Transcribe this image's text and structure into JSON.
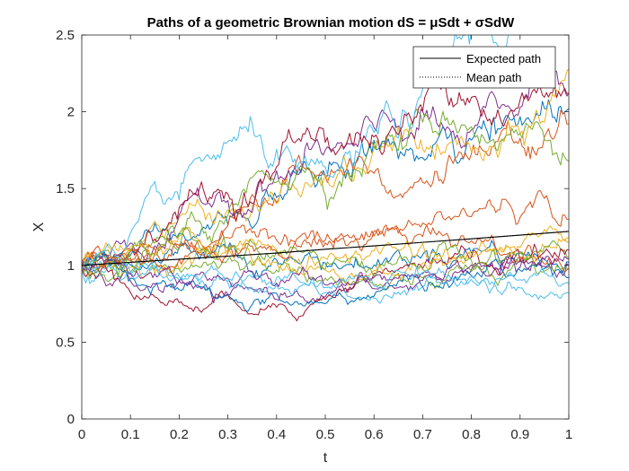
{
  "chart_data": {
    "type": "line",
    "title": "Paths of a geometric Brownian motion dS = μSdt + σSdW",
    "xlabel": "t",
    "ylabel": "X",
    "xlim": [
      0,
      1
    ],
    "ylim": [
      0,
      2.5
    ],
    "x_ticks": [
      "0",
      "0.1",
      "0.2",
      "0.3",
      "0.4",
      "0.5",
      "0.6",
      "0.7",
      "0.8",
      "0.9",
      "1"
    ],
    "y_ticks": [
      "0",
      "0.5",
      "1",
      "1.5",
      "2",
      "2.5"
    ],
    "grid": false,
    "legend": {
      "placement": "top-right",
      "entries": [
        {
          "label": "Expected path",
          "style": "solid",
          "color": "#000000"
        },
        {
          "label": "Mean path",
          "style": "dotted",
          "color": "#000000"
        }
      ]
    },
    "x": [
      0,
      0.1,
      0.2,
      0.3,
      0.4,
      0.5,
      0.6,
      0.7,
      0.8,
      0.9,
      1
    ],
    "series": [
      {
        "color": "#0072BD",
        "values": [
          1.0,
          1.06,
          1.18,
          1.32,
          1.48,
          1.62,
          1.74,
          1.7,
          1.82,
          1.92,
          2.02
        ]
      },
      {
        "color": "#D95319",
        "values": [
          1.0,
          1.04,
          1.15,
          1.25,
          1.45,
          1.6,
          1.62,
          1.58,
          1.7,
          1.78,
          1.92
        ]
      },
      {
        "color": "#EDB120",
        "values": [
          1.0,
          1.1,
          1.28,
          1.35,
          1.42,
          1.55,
          1.72,
          1.82,
          1.78,
          1.9,
          2.28
        ]
      },
      {
        "color": "#7E2F8E",
        "values": [
          1.0,
          1.14,
          1.28,
          1.42,
          1.58,
          1.72,
          1.92,
          2.02,
          1.85,
          1.98,
          2.12
        ]
      },
      {
        "color": "#77AC30",
        "values": [
          1.0,
          1.08,
          1.18,
          1.3,
          1.55,
          1.5,
          1.82,
          1.98,
          1.9,
          1.85,
          1.68
        ]
      },
      {
        "color": "#4DBEEE",
        "values": [
          1.0,
          1.18,
          1.48,
          1.8,
          1.68,
          1.62,
          1.9,
          2.1,
          2.45,
          2.55,
          2.6
        ]
      },
      {
        "color": "#A2142F",
        "values": [
          1.0,
          1.12,
          1.32,
          1.48,
          1.62,
          1.9,
          1.85,
          2.05,
          2.08,
          2.02,
          2.12
        ]
      },
      {
        "color": "#0072BD",
        "values": [
          1.0,
          1.02,
          1.08,
          1.12,
          1.05,
          1.02,
          0.98,
          1.05,
          1.12,
          1.08,
          1.02
        ]
      },
      {
        "color": "#D95319",
        "values": [
          1.0,
          1.05,
          1.12,
          1.18,
          1.2,
          1.15,
          1.22,
          1.25,
          1.32,
          1.28,
          1.3
        ]
      },
      {
        "color": "#EDB120",
        "values": [
          1.0,
          0.98,
          1.02,
          1.08,
          1.12,
          1.05,
          1.1,
          1.12,
          1.08,
          1.1,
          1.15
        ]
      },
      {
        "color": "#7E2F8E",
        "values": [
          1.0,
          0.92,
          0.88,
          0.82,
          0.78,
          0.8,
          0.85,
          0.9,
          0.95,
          0.98,
          1.0
        ]
      },
      {
        "color": "#77AC30",
        "values": [
          1.0,
          0.95,
          0.98,
          1.02,
          0.95,
          0.9,
          0.88,
          0.92,
          0.98,
          1.02,
          1.05
        ]
      },
      {
        "color": "#4DBEEE",
        "values": [
          1.0,
          0.96,
          0.92,
          0.9,
          0.85,
          0.82,
          0.8,
          0.85,
          0.9,
          0.86,
          0.82
        ]
      },
      {
        "color": "#A2142F",
        "values": [
          1.0,
          0.85,
          0.78,
          0.8,
          0.75,
          0.8,
          0.92,
          1.0,
          1.05,
          1.1,
          1.1
        ]
      },
      {
        "color": "#0072BD",
        "values": [
          1.0,
          0.9,
          0.85,
          0.8,
          0.82,
          0.75,
          0.8,
          0.88,
          0.95,
          0.98,
          0.92
        ]
      },
      {
        "color": "#D95319",
        "values": [
          1.0,
          1.08,
          1.0,
          1.05,
          1.1,
          1.12,
          1.18,
          1.2,
          1.15,
          1.05,
          0.98
        ]
      },
      {
        "color": "#EDB120",
        "values": [
          1.0,
          1.1,
          1.15,
          1.08,
          1.02,
          0.98,
          0.95,
          1.0,
          1.08,
          1.12,
          1.18
        ]
      },
      {
        "color": "#7E2F8E",
        "values": [
          1.0,
          0.94,
          0.88,
          0.92,
          0.86,
          0.88,
          0.92,
          0.95,
          1.0,
          1.02,
          1.04
        ]
      },
      {
        "color": "#77AC30",
        "values": [
          1.0,
          1.06,
          1.1,
          1.12,
          1.05,
          0.98,
          0.95,
          1.0,
          1.05,
          1.08,
          0.98
        ]
      },
      {
        "color": "#4DBEEE",
        "values": [
          1.0,
          0.98,
          0.95,
          0.9,
          0.88,
          0.85,
          0.9,
          0.95,
          0.92,
          0.9,
          0.88
        ]
      }
    ],
    "expected_path": {
      "values": [
        1.0,
        1.02,
        1.04,
        1.06,
        1.08,
        1.105,
        1.127,
        1.15,
        1.173,
        1.197,
        1.221
      ]
    },
    "mean_path": {
      "values": [
        1.0,
        1.02,
        1.04,
        1.06,
        1.08,
        1.105,
        1.127,
        1.15,
        1.173,
        1.197,
        1.221
      ]
    }
  }
}
